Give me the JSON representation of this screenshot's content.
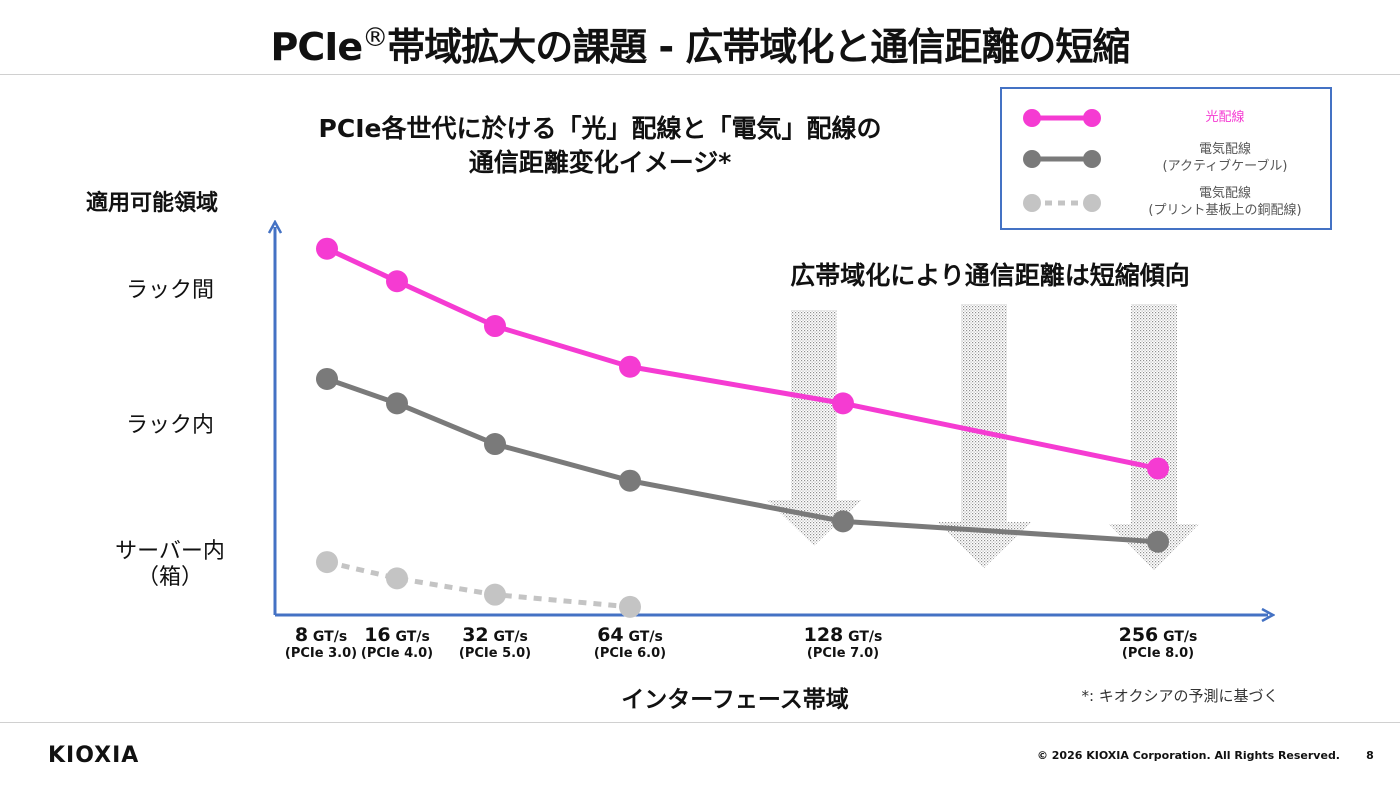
{
  "slide": {
    "title_main": "PCIe",
    "title_reg": "®",
    "title_rest": "帯域拡大の課題 - 広帯域化と通信距離の短縮",
    "logo": "KIOXIA",
    "copyright": "© 2026 KIOXIA Corporation. All Rights Reserved.",
    "page_number": "8"
  },
  "chart_data": {
    "type": "line",
    "title_line1": "PCIe各世代に於ける「光」配線と「電気」配線の",
    "title_line2": "通信距離変化イメージ*",
    "ylabel": "適用可能領域",
    "xlabel": "インターフェース帯域",
    "y_categories": [
      {
        "label": "ラック間",
        "sub": ""
      },
      {
        "label": "ラック内",
        "sub": ""
      },
      {
        "label": "サーバー内",
        "sub": "（箱）"
      }
    ],
    "categories": [
      {
        "value": "8",
        "unit": "GT/s",
        "gen": "(PCIe 3.0)"
      },
      {
        "value": "16",
        "unit": "GT/s",
        "gen": "(PCIe 4.0)"
      },
      {
        "value": "32",
        "unit": "GT/s",
        "gen": "(PCIe 5.0)"
      },
      {
        "value": "64",
        "unit": "GT/s",
        "gen": "(PCIe 6.0)"
      },
      {
        "value": "128",
        "unit": "GT/s",
        "gen": "(PCIe 7.0)"
      },
      {
        "value": "256",
        "unit": "GT/s",
        "gen": "(PCIe 8.0)"
      }
    ],
    "x_numeric": [
      8,
      16,
      32,
      64,
      128,
      256
    ],
    "ylim": [
      0,
      10
    ],
    "series": [
      {
        "name": "光配線",
        "sub": "",
        "color": "#f53bd2",
        "style": "solid",
        "x": [
          8,
          16,
          32,
          64,
          128,
          256
        ],
        "y": [
          9.0,
          8.2,
          7.1,
          6.1,
          5.2,
          3.6
        ]
      },
      {
        "name": "電気配線",
        "sub": "(アクティブケーブル)",
        "color": "#7a7a7a",
        "style": "solid",
        "x": [
          8,
          16,
          32,
          64,
          128,
          256
        ],
        "y": [
          5.8,
          5.2,
          4.2,
          3.3,
          2.3,
          1.8
        ]
      },
      {
        "name": "電気配線",
        "sub": "(プリント基板上の銅配線)",
        "color": "#c4c4c4",
        "style": "dotted",
        "x": [
          8,
          16,
          32,
          64
        ],
        "y": [
          1.3,
          0.9,
          0.5,
          0.2
        ]
      }
    ],
    "annotation": "広帯域化により通信距離は短縮傾向",
    "annotation_arrows": 3,
    "footnote": "*: キオクシアの予測に基づく",
    "legend_position": "top-right",
    "grid": false
  }
}
